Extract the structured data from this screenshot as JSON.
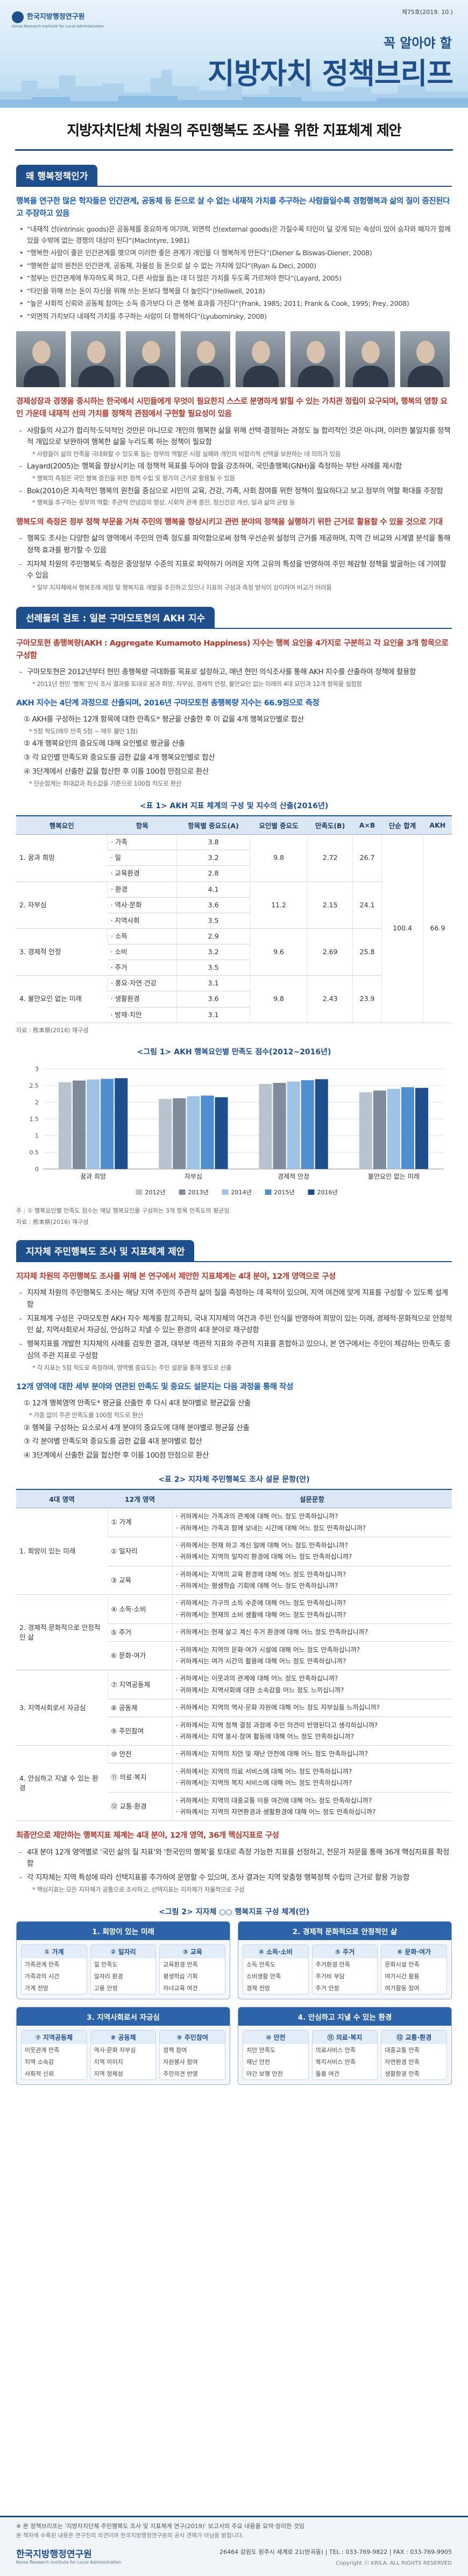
{
  "header": {
    "org": "한국지방행정연구원",
    "org_en": "Korea Research Institute for Local Administration",
    "issue": "제75호(2019. 10.)",
    "tagline": "꼭 알아야 할",
    "title": "지방자치 정책브리프"
  },
  "title": "지방자치단체 차원의 주민행복도 조사를 위한 지표체계 제안",
  "sections": [
    {
      "heading": "왜 행복정책인가",
      "blocks": [
        {
          "type": "lead",
          "color": "#1b5dab",
          "text": "행복을 연구한 많은 학자들은 인간관계, 공동체 등 돈으로 살 수 없는 내재적 가치를 추구하는 사람들일수록 경험행복과 삶의 질이 증진된다고 주장하고 있음"
        },
        {
          "type": "quotes",
          "items": [
            "“내재적 선(intrinsic goods)은 공동체를 중요하게 여기며, 외면적 선(external goods)은 가질수록 타인이 덜 갖게 되는 속성이 있어 승자와 패자가 함께 있을 수밖에 없는 경쟁의 대상이 된다”(MacIntyre, 1981)",
            "“행복한 사람이 좋은 인간관계를 맺으며 이러한 좋은 관계가 개인을 더 행복하게 만든다”(Diener & Biswas-Diener, 2008)",
            "“행복한 삶의 원천은 인간관계, 공동체, 자율성 등 돈으로 살 수 없는 가치에 있다”(Ryan & Deci, 2000)",
            "“정부는 인간관계에 투자하도록 하고, 다른 사람을 돕는 데 더 많은 가치를 두도록 가르쳐야 한다”(Layard, 2005)",
            "“타인을 위해 쓰는 돈이 자신을 위해 쓰는 돈보다 행복을 더 높인다”(Helliwell, 2018)",
            "“높은 사회적 신뢰와 공동체 참여는 소득 증가보다 더 큰 행복 효과를 가진다”(Frank, 1985; 2011; Frank & Cook, 1995; Frey, 2008)",
            "“외면적 가치보다 내재적 가치를 추구하는 사람이 더 행복하다”(Lyubomirsky, 2008)"
          ]
        },
        {
          "type": "photos"
        },
        {
          "type": "lead",
          "color": "#b03a2e",
          "text": "경제성장과 경쟁을 중시하는 한국에서 시민들에게 무엇이 필요한지 스스로 분명하게 밝힐 수 있는 가치관 정립이 요구되며, 행복의 영향 요인 가운데 내재적 선의 가치를 정책적 관점에서 구현할 필요성이 있음"
        },
        {
          "type": "list",
          "items": [
            {
              "text": "사람들의 사고가 합리적·도덕적인 것만은 아니므로 개인의 행복한 삶을 위해 선택·결정하는 과정도 늘 합리적인 것은 아니며, 이러한 불일치를 정책적 개입으로 보완하여 행복한 삶을 누리도록 하는 정책이 필요함",
              "note": "* 사람들이 삶의 만족을 극대화할 수 있도록 돕는 정부의 역할은 시장 실패와 개인의 비합리적 선택을 보완하는 데 의의가 있음"
            },
            {
              "text": "Layard(2005)는 행복을 향상시키는 데 정책적 목표를 두어야 함을 강조하며, 국민총행복(GNH)을 측정하는 부탄 사례를 제시함",
              "note": "* 행복의 측정은 국민 행복 증진을 위한 정책 수립 및 평가의 근거로 활용될 수 있음"
            },
            {
              "text": "Bok(2010)은 지속적인 행복의 원천을 중심으로 시민의 교육, 건강, 가족, 사회 참여를 위한 정책이 필요하다고 보고 정부의 역할 확대를 주장함",
              "note": "* 행복을 추구하는 정부의 역할: 주관적 안녕감의 향상, 사회적 관계 증진, 정신건강 개선, 일과 삶의 균형 등"
            }
          ]
        },
        {
          "type": "lead",
          "color": "#b03a2e",
          "text": "행복도의 측정은 정부 정책 부문을 거쳐 주민의 행복을 향상시키고 관련 분야의 정책을 실행하기 위한 근거로 활용할 수 있을 것으로 기대"
        },
        {
          "type": "list",
          "items": [
            {
              "text": "행복도 조사는 다양한 삶의 영역에서 주민의 만족 정도를 파악함으로써 정책 우선순위 설정의 근거를 제공하며, 지역 간 비교와 시계열 분석을 통해 정책 효과를 평가할 수 있음"
            },
            {
              "text": "지자체 차원의 주민행복도 측정은 중앙정부 수준의 지표로 파악하기 어려운 지역 고유의 특성을 반영하여 주민 체감형 정책을 발굴하는 데 기여할 수 있음",
              "note": "* 일부 지자체에서 행복조례 제정 및 행복지표 개발을 추진하고 있으나 지표의 구성과 측정 방식이 상이하여 비교가 어려움"
            }
          ]
        }
      ]
    },
    {
      "heading": "선례들의 검토 : 일본 구마모토현의 AKH 지수",
      "blocks": [
        {
          "type": "lead",
          "color": "#b03a2e",
          "text": "구마모토현 총행복량(AKH : Aggregate Kumamoto Happiness) 지수는 행복 요인을 4가지로 구분하고 각 요인을 3개 항목으로 구성함"
        },
        {
          "type": "list",
          "items": [
            {
              "text": "구마모토현은 2012년부터 현민 총행복량 극대화를 목표로 설정하고, 매년 현민 의식조사를 통해 AKH 지수를 산출하여 정책에 활용함",
              "note": "* 2011년 현민 '행복' 인식 조사 결과를 토대로 꿈과 희망, 자부심, 경제적 안정, 불안요인 없는 미래의 4대 요인과 12개 항목을 설정함"
            }
          ]
        },
        {
          "type": "lead",
          "color": "#1b5dab",
          "text": "AKH 지수는 4단계 과정으로 산출되며, 2016년 구마모토현 총행복량 지수는 66.9점으로 측정"
        },
        {
          "type": "steps",
          "items": [
            {
              "text": "① AKH를 구성하는 12개 항목에 대한 만족도* 평균을 산출한 후 이 값을 4개 행복요인별로 합산",
              "note": "* 5점 척도(매우 만족 5점 ~ 매우 불만 1점)"
            },
            {
              "text": "② 4개 행복요인의 중요도에 대해 요인별로 평균을 산출"
            },
            {
              "text": "③ 각 요인별 만족도와 중요도를 곱한 값을 4개 행복요인별로 합산"
            },
            {
              "text": "④ 3단계에서 산출한 값을 합산한 후 이를 100점 만점으로 환산",
              "note": "* 단순합계는 최대값과 최소값을 기준으로 100점 척도로 환산"
            }
          ]
        },
        {
          "type": "akh-table",
          "caption": "<표 1> AKH 지표 체계의 구성 및 지수의 산출(2016년)",
          "columns": [
            "행복요인",
            "항목",
            "항목별 중요도(A)",
            "요인별 중요도",
            "만족도(B)",
            "A×B",
            "단순 합계",
            "AKH"
          ],
          "factors": [
            {
              "name": "1. 꿈과 희망",
              "items": [
                {
                  "name": "· 가족",
                  "weight": "3.8"
                },
                {
                  "name": "· 일",
                  "weight": "3.2"
                },
                {
                  "name": "· 교육환경",
                  "weight": "2.8"
                }
              ],
              "importance": "9.8",
              "satisfaction": "2.72",
              "product": "26.7"
            },
            {
              "name": "2. 자부심",
              "items": [
                {
                  "name": "· 환경",
                  "weight": "4.1"
                },
                {
                  "name": "· 역사·문화",
                  "weight": "3.6"
                },
                {
                  "name": "· 지역사회",
                  "weight": "3.5"
                }
              ],
              "importance": "11.2",
              "satisfaction": "2.15",
              "product": "24.1"
            },
            {
              "name": "3. 경제적 안정",
              "items": [
                {
                  "name": "· 소득",
                  "weight": "2.9"
                },
                {
                  "name": "· 소비",
                  "weight": "3.2"
                },
                {
                  "name": "· 주거",
                  "weight": "3.5"
                }
              ],
              "importance": "9.6",
              "satisfaction": "2.69",
              "product": "25.8"
            },
            {
              "name": "4. 불안요인 없는 미래",
              "items": [
                {
                  "name": "· 풍요·자연 건강",
                  "weight": "3.1"
                },
                {
                  "name": "· 생활환경",
                  "weight": "3.6"
                },
                {
                  "name": "· 방재·치안",
                  "weight": "3.1"
                }
              ],
              "importance": "9.8",
              "satisfaction": "2.43",
              "product": "23.9"
            }
          ],
          "simple_sum": "100.4",
          "akh": "66.9",
          "source": "자료 : 熊本県(2016) 재구성"
        },
        {
          "type": "chart",
          "chart": {
            "type": "bar",
            "title": "<그림 1> AKH 행복요인별 만족도 점수(2012~2016년)",
            "categories": [
              "꿈과 희망",
              "자부심",
              "경제적 안정",
              "불안요인 없는 미래"
            ],
            "series": [
              {
                "name": "2012년",
                "color": "#b9c3cf",
                "values": [
                  2.6,
                  2.1,
                  2.55,
                  2.3
                ]
              },
              {
                "name": "2013년",
                "color": "#7f8c9b",
                "values": [
                  2.65,
                  2.12,
                  2.58,
                  2.35
                ]
              },
              {
                "name": "2014년",
                "color": "#9fc3e6",
                "values": [
                  2.68,
                  2.18,
                  2.62,
                  2.4
                ]
              },
              {
                "name": "2015년",
                "color": "#4f8fd1",
                "values": [
                  2.7,
                  2.2,
                  2.66,
                  2.45
                ]
              },
              {
                "name": "2016년",
                "color": "#1f4e8c",
                "values": [
                  2.72,
                  2.15,
                  2.69,
                  2.43
                ]
              }
            ],
            "ylim": [
              0,
              3
            ],
            "yticks": [
              0,
              0.5,
              1,
              1.5,
              2,
              2.5,
              3
            ],
            "grid": true,
            "note": "주 : ① 행복요인별 만족도 점수는 해당 행복요인을 구성하는 3개 항목 만족도의 평균임",
            "source": "자료 : 熊本県(2016) 재구성"
          }
        }
      ]
    },
    {
      "heading": "지자체 주민행복도 조사 및 지표체계 제안",
      "blocks": [
        {
          "type": "lead",
          "color": "#b03a2e",
          "text": "지자체 차원의 주민행복도 조사를 위해 본 연구에서 제안한 지표체계는 4대 분야, 12개 영역으로 구성"
        },
        {
          "type": "list",
          "items": [
            {
              "text": "지자체 차원의 주민행복도 조사는 해당 지역 주민의 주관적 삶의 질을 측정하는 데 목적이 있으며, 지역 여건에 맞게 지표를 구성할 수 있도록 설계함"
            },
            {
              "text": "지표체계 구성은 구마모토현 AKH 지수 체계를 참고하되, 국내 지자체의 여건과 주민 인식을 반영하여 희망이 있는 미래, 경제적·문화적으로 안정적인 삶, 지역사회로서 자긍심, 안심하고 지낼 수 있는 환경의 4대 분야로 재구성함"
            },
            {
              "text": "행복지표를 개발한 지자체의 사례를 검토한 결과, 대부분 객관적 지표와 주관적 지표를 혼합하고 있으나, 본 연구에서는 주민이 체감하는 만족도 중심의 주관 지표로 구성함",
              "note": "* 각 지표는 5점 척도로 측정하며, 영역별 중요도는 주민 설문을 통해 별도로 산출"
            }
          ]
        },
        {
          "type": "lead",
          "color": "#1b5dab",
          "text": "12개 영역에 대한 세부 분야와 연관된 만족도 및 중요도 설문지는 다음 과정을 통해 작성"
        },
        {
          "type": "steps",
          "items": [
            {
              "text": "① 12개 행복영역 만족도* 평균을 산출한 후 다시 4대 분야별로 평균값을 산출",
              "note": "* 가중 없이 주관 만족도를 100점 척도로 환산"
            },
            {
              "text": "② 행복을 구성하는 요소로서 4개 분야의 중요도에 대해 분야별로 평균을 산출"
            },
            {
              "text": "③ 각 분야별 만족도와 중요도를 곱한 값을 4대 분야별로 합산"
            },
            {
              "text": "④ 3단계에서 산출한 값을 합산한 후 이를 100점 만점으로 환산"
            }
          ]
        },
        {
          "type": "survey-table",
          "caption": "<표 2> 지자체 주민행복도 조사 설문 문항(안)",
          "columns": [
            "4대 영역",
            "12개 영역",
            "설문문항"
          ],
          "domains": [
            {
              "name": "1. 희망이 있는 미래",
              "areas": [
                {
                  "name": "① 가계",
                  "questions": [
                    "귀하께서는 가족과의 관계에 대해 어느 정도 만족하십니까?",
                    "귀하께서는 가족과 함께 보내는 시간에 대해 어느 정도 만족하십니까?"
                  ]
                },
                {
                  "name": "② 일자리",
                  "questions": [
                    "귀하께서는 현재 하고 계신 일에 대해 어느 정도 만족하십니까?",
                    "귀하께서는 지역의 일자리 환경에 대해 어느 정도 만족하십니까?"
                  ]
                },
                {
                  "name": "③ 교육",
                  "questions": [
                    "귀하께서는 지역의 교육 환경에 대해 어느 정도 만족하십니까?",
                    "귀하께서는 평생학습 기회에 대해 어느 정도 만족하십니까?"
                  ]
                }
              ]
            },
            {
              "name": "2. 경제적 문화적으로 안정적인 삶",
              "areas": [
                {
                  "name": "④ 소득·소비",
                  "questions": [
                    "귀하께서는 가구의 소득 수준에 대해 어느 정도 만족하십니까?",
                    "귀하께서는 현재의 소비 생활에 대해 어느 정도 만족하십니까?"
                  ]
                },
                {
                  "name": "⑤ 주거",
                  "questions": [
                    "귀하께서는 현재 살고 계신 주거 환경에 대해 어느 정도 만족하십니까?"
                  ]
                },
                {
                  "name": "⑥ 문화·여가",
                  "questions": [
                    "귀하께서는 지역의 문화·여가 시설에 대해 어느 정도 만족하십니까?",
                    "귀하께서는 여가 시간의 활용에 대해 어느 정도 만족하십니까?"
                  ]
                }
              ]
            },
            {
              "name": "3. 지역사회로서 자긍심",
              "areas": [
                {
                  "name": "⑦ 지역공동체",
                  "questions": [
                    "귀하께서는 이웃과의 관계에 대해 어느 정도 만족하십니까?",
                    "귀하께서는 지역사회에 대한 소속감을 어느 정도 느끼십니까?"
                  ]
                },
                {
                  "name": "⑧ 공동체",
                  "questions": [
                    "귀하께서는 지역의 역사·문화 자원에 대해 어느 정도 자부심을 느끼십니까?"
                  ]
                },
                {
                  "name": "⑨ 주민참여",
                  "questions": [
                    "귀하께서는 지역 정책 결정 과정에 주민 의견이 반영된다고 생각하십니까?",
                    "귀하께서는 지역 봉사·참여 활동에 대해 어느 정도 만족하십니까?"
                  ]
                }
              ]
            },
            {
              "name": "4. 안심하고 지낼 수 있는 환경",
              "areas": [
                {
                  "name": "⑩ 안전",
                  "questions": [
                    "귀하께서는 지역의 치안 및 재난 안전에 대해 어느 정도 만족하십니까?"
                  ]
                },
                {
                  "name": "⑪ 의료·복지",
                  "questions": [
                    "귀하께서는 지역의 의료 서비스에 대해 어느 정도 만족하십니까?",
                    "귀하께서는 지역의 복지 서비스에 대해 어느 정도 만족하십니까?"
                  ]
                },
                {
                  "name": "⑫ 교통·환경",
                  "questions": [
                    "귀하께서는 지역의 대중교통 이용 여건에 대해 어느 정도 만족하십니까?",
                    "귀하께서는 지역의 자연환경과 생활환경에 대해 어느 정도 만족하십니까?"
                  ]
                }
              ]
            }
          ]
        },
        {
          "type": "lead",
          "color": "#b03a2e",
          "text": "최종안으로 제안하는 행복지표 체계는 4대 분야, 12개 영역, 36개 핵심지표로 구성"
        },
        {
          "type": "list",
          "items": [
            {
              "text": "4대 분야 12개 영역별로 '국민 삶의 질 지표'와 '한국인의 행복'을 토대로 측정 가능한 지표를 선정하고, 전문가 자문을 통해 36개 핵심지표를 확정함"
            },
            {
              "text": "각 지자체는 지역 특성에 따라 선택지표를 추가하여 운영할 수 있으며, 조사 결과는 지역 맞춤형 행복정책 수립의 근거로 활용 가능함",
              "note": "* 핵심지표는 모든 지자체가 공통으로 조사하고, 선택지표는 지자체가 자율적으로 구성"
            }
          ]
        },
        {
          "type": "diagram",
          "caption": "<그림 2> 지자체 ○○ 행복지표 구성 체계(안)",
          "groups": [
            {
              "name": "1. 희망이 있는 미래",
              "areas": [
                {
                  "name": "① 가계",
                  "indicators": [
                    "가족관계 만족",
                    "가족과의 시간",
                    "가계 전망"
                  ]
                },
                {
                  "name": "② 일자리",
                  "indicators": [
                    "일 만족도",
                    "일자리 환경",
                    "고용 안정"
                  ]
                },
                {
                  "name": "③ 교육",
                  "indicators": [
                    "교육환경 만족",
                    "평생학습 기회",
                    "자녀교육 여건"
                  ]
                }
              ]
            },
            {
              "name": "2. 경제적 문화적으로 안정적인 삶",
              "areas": [
                {
                  "name": "④ 소득·소비",
                  "indicators": [
                    "소득 만족도",
                    "소비생활 만족",
                    "경제 전망"
                  ]
                },
                {
                  "name": "⑤ 주거",
                  "indicators": [
                    "주거환경 만족",
                    "주거비 부담",
                    "주거 안정"
                  ]
                },
                {
                  "name": "⑥ 문화·여가",
                  "indicators": [
                    "문화시설 만족",
                    "여가시간 활용",
                    "여가활동 참여"
                  ]
                }
              ]
            },
            {
              "name": "3. 지역사회로서 자긍심",
              "areas": [
                {
                  "name": "⑦ 지역공동체",
                  "indicators": [
                    "이웃관계 만족",
                    "지역 소속감",
                    "사회적 신뢰"
                  ]
                },
                {
                  "name": "⑧ 공동체",
                  "indicators": [
                    "역사·문화 자부심",
                    "지역 이미지",
                    "지역 정체성"
                  ]
                },
                {
                  "name": "⑨ 주민참여",
                  "indicators": [
                    "정책 참여",
                    "자원봉사 참여",
                    "주민의견 반영"
                  ]
                }
              ]
            },
            {
              "name": "4. 안심하고 지낼 수 있는 환경",
              "areas": [
                {
                  "name": "⑩ 안전",
                  "indicators": [
                    "치안 만족도",
                    "재난 안전",
                    "야간 보행 안전"
                  ]
                },
                {
                  "name": "⑪ 의료·복지",
                  "indicators": [
                    "의료서비스 만족",
                    "복지서비스 만족",
                    "돌봄 여건"
                  ]
                },
                {
                  "name": "⑫ 교통·환경",
                  "indicators": [
                    "대중교통 만족",
                    "자연환경 만족",
                    "생활환경 만족"
                  ]
                }
              ]
            }
          ]
        }
      ]
    }
  ],
  "footer": {
    "summary": "※ 본 정책브리프는 '지방자치단체 주민행복도 조사 및 지표체계 연구(2019)' 보고서의 주요 내용을 요약·정리한 것임",
    "disclaimer": "본 책자에 수록된 내용은 연구진의 의견이며 한국지방행정연구원의 공식 견해가 아님을 밝힙니다.",
    "org": "한국지방행정연구원",
    "org_en": "Korea Research Institute for Local Administration",
    "address": "26464 강원도 원주시 세계로 21(반곡동) | TEL : 033-769-9822 | FAX : 033-769-9905",
    "copyright": "Copyright ⓒ KRILA. ALL RIGHTS RESERVED"
  }
}
